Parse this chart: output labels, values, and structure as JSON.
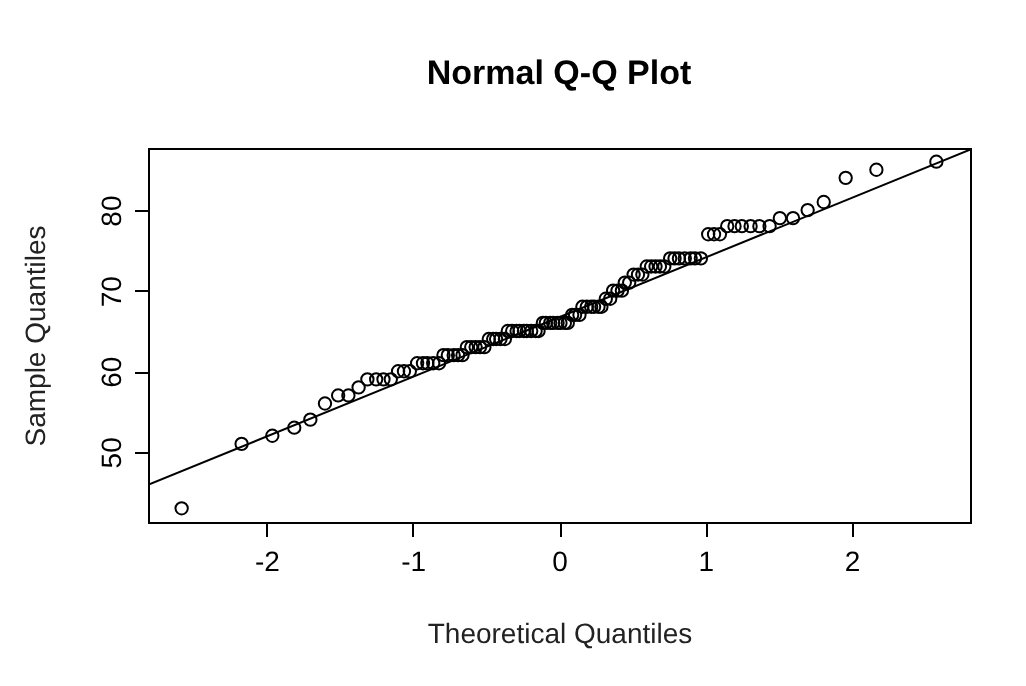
{
  "chart_data": {
    "type": "scatter",
    "title": "Normal Q-Q Plot",
    "xlabel": "Theoretical Quantiles",
    "ylabel": "Sample Quantiles",
    "xlim": [
      -2.81,
      2.81
    ],
    "ylim": [
      41.3,
      87.7
    ],
    "xticks": [
      -2,
      -1,
      0,
      1,
      2
    ],
    "yticks": [
      50,
      60,
      70,
      80
    ],
    "series": [
      {
        "marker": "circle",
        "color": "#000000",
        "x": [
          -2.58,
          -2.17,
          -1.96,
          -1.81,
          -1.7,
          -1.6,
          -1.51,
          -1.44,
          -1.37,
          -1.31,
          -1.25,
          -1.2,
          -1.15,
          -1.1,
          -1.06,
          -1.02,
          -0.97,
          -0.93,
          -0.9,
          -0.86,
          -0.82,
          -0.79,
          -0.76,
          -0.72,
          -0.69,
          -0.66,
          -0.63,
          -0.6,
          -0.57,
          -0.54,
          -0.51,
          -0.48,
          -0.45,
          -0.43,
          -0.4,
          -0.37,
          -0.35,
          -0.32,
          -0.29,
          -0.27,
          -0.24,
          -0.22,
          -0.19,
          -0.16,
          -0.14,
          -0.11,
          -0.09,
          -0.06,
          -0.04,
          -0.01,
          0.01,
          0.04,
          0.06,
          0.09,
          0.11,
          0.14,
          0.16,
          0.19,
          0.22,
          0.24,
          0.27,
          0.29,
          0.32,
          0.35,
          0.37,
          0.4,
          0.43,
          0.45,
          0.48,
          0.51,
          0.54,
          0.57,
          0.6,
          0.63,
          0.66,
          0.69,
          0.72,
          0.76,
          0.79,
          0.82,
          0.86,
          0.9,
          0.93,
          0.97,
          1.02,
          1.06,
          1.1,
          1.15,
          1.2,
          1.25,
          1.31,
          1.37,
          1.44,
          1.51,
          1.6,
          1.7,
          1.81,
          1.96,
          2.17,
          2.58
        ],
        "values": [
          43,
          51,
          52,
          53,
          54,
          56,
          57,
          57,
          58,
          59,
          59,
          59,
          59,
          60,
          60,
          60,
          61,
          61,
          61,
          61,
          61,
          62,
          62,
          62,
          62,
          62,
          63,
          63,
          63,
          63,
          63,
          64,
          64,
          64,
          64,
          64,
          65,
          65,
          65,
          65,
          65,
          65,
          65,
          65,
          65,
          66,
          66,
          66,
          66,
          66,
          66,
          66,
          66,
          67,
          67,
          67,
          68,
          68,
          68,
          68,
          68,
          68,
          69,
          69,
          70,
          70,
          70,
          71,
          71,
          72,
          72,
          72,
          73,
          73,
          73,
          73,
          73,
          74,
          74,
          74,
          74,
          74,
          74,
          74,
          77,
          77,
          77,
          78,
          78,
          78,
          78,
          78,
          78,
          79,
          79,
          80,
          81,
          84,
          85,
          86
        ]
      },
      {
        "type": "line",
        "color": "#000000",
        "x": [
          -2.81,
          2.81
        ],
        "values": [
          45.9,
          87.5
        ]
      }
    ]
  }
}
